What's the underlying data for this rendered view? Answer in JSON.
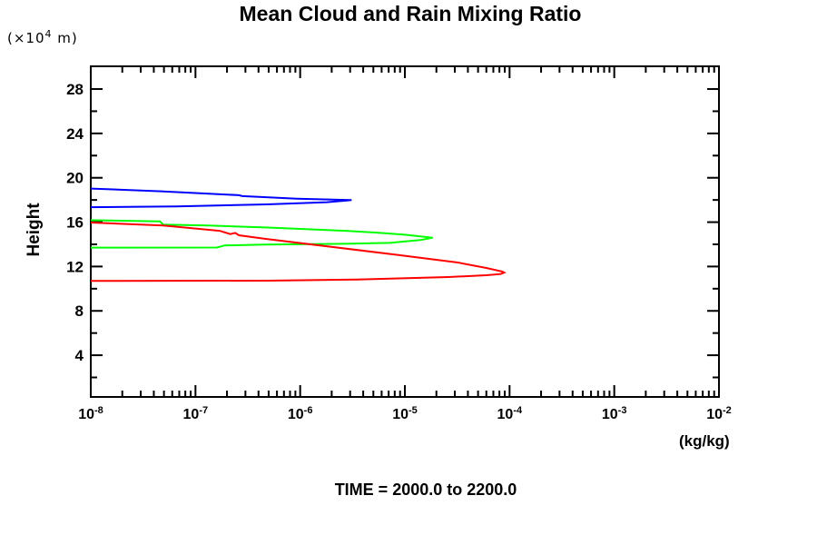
{
  "chart_data": {
    "type": "line",
    "title": "Mean Cloud and Rain Mixing Ratio",
    "xlabel": "(kg/kg)",
    "ylabel": "Height",
    "y_unit": {
      "prefix": "(×10",
      "exp": "4",
      "suffix": " m)"
    },
    "annotation": "TIME = 2000.0 to 2200.0",
    "x_scale": "log",
    "xlim": [
      1e-08,
      0.01
    ],
    "ylim": [
      0.2,
      30.0
    ],
    "grid": false,
    "legend": false,
    "frame_ticks": "all-sides-inward",
    "x_tick_exponents": [
      -8,
      -7,
      -6,
      -5,
      -4,
      -3,
      -2
    ],
    "x_tick_base": "10",
    "x_minor_multiples": [
      2,
      3,
      4,
      5,
      6,
      7,
      8,
      9
    ],
    "y_major_ticks": [
      4,
      8,
      12,
      16,
      20,
      24,
      28
    ],
    "y_minor_ticks": [
      2,
      6,
      10,
      14,
      18,
      22,
      26
    ],
    "series": [
      {
        "name": "blue-curve",
        "color": "#0000ff",
        "points": [
          [
            1e-08,
            17.35
          ],
          [
            6.6e-08,
            17.42
          ],
          [
            4.8e-07,
            17.6
          ],
          [
            1.8e-06,
            17.8
          ],
          [
            3.1e-06,
            17.99
          ],
          [
            9.3e-07,
            18.12
          ],
          [
            2.8e-07,
            18.35
          ],
          [
            2.6e-07,
            18.43
          ],
          [
            4.7e-08,
            18.78
          ],
          [
            1e-08,
            19.03
          ]
        ]
      },
      {
        "name": "green-curve",
        "color": "#00ff00",
        "points": [
          [
            1e-08,
            13.7
          ],
          [
            1.6e-07,
            13.71
          ],
          [
            1.9e-07,
            13.9
          ],
          [
            4.6e-07,
            13.97
          ],
          [
            2.7e-06,
            14.05
          ],
          [
            7.2e-06,
            14.13
          ],
          [
            1.4e-05,
            14.38
          ],
          [
            1.85e-05,
            14.6
          ],
          [
            1e-05,
            14.87
          ],
          [
            5.2e-06,
            15.06
          ],
          [
            2.7e-06,
            15.22
          ],
          [
            4.6e-07,
            15.52
          ],
          [
            1.3e-07,
            15.69
          ],
          [
            4.9e-08,
            15.78
          ],
          [
            4.6e-08,
            16.06
          ],
          [
            1e-08,
            16.18
          ]
        ]
      },
      {
        "name": "red-curve",
        "color": "#ff0000",
        "points": [
          [
            1e-08,
            15.96
          ],
          [
            4.9e-08,
            15.69
          ],
          [
            1.7e-07,
            15.22
          ],
          [
            2.15e-07,
            14.92
          ],
          [
            2.4e-07,
            15.03
          ],
          [
            2.6e-07,
            14.82
          ],
          [
            4.6e-07,
            14.5
          ],
          [
            8.7e-06,
            13.04
          ],
          [
            1.7e-05,
            12.69
          ],
          [
            3.2e-05,
            12.36
          ],
          [
            6e-05,
            11.87
          ],
          [
            8.5e-05,
            11.55
          ],
          [
            8.9e-05,
            11.45
          ],
          [
            8.2e-05,
            11.32
          ],
          [
            6e-05,
            11.21
          ],
          [
            2.6e-05,
            11.05
          ],
          [
            3.5e-06,
            10.83
          ],
          [
            4.9e-07,
            10.72
          ],
          [
            1e-08,
            10.7
          ]
        ]
      }
    ]
  }
}
